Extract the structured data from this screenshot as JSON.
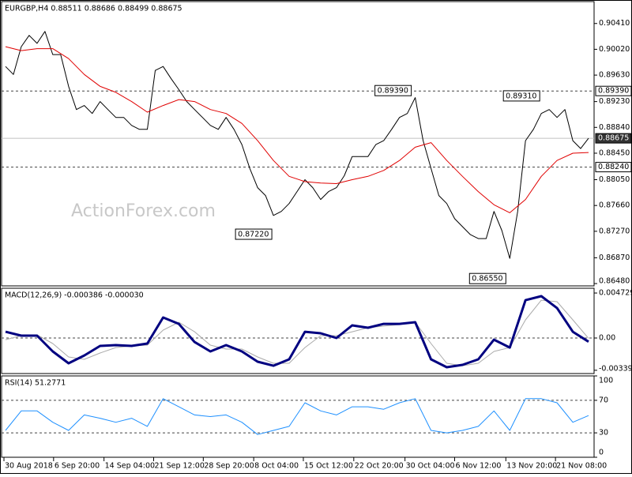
{
  "chart_data": [
    {
      "type": "line",
      "title": "EURGBP,H4  0.88511 0.88686 0.88499 0.88675",
      "watermark": "ActionForex.com",
      "xlim": [
        -0.5,
        74.7
      ],
      "xticks": [
        {
          "value": -0.2,
          "label": "30 Aug 2018"
        },
        {
          "value": 6.1,
          "label": "6 Sep 20:00"
        },
        {
          "value": 12.5,
          "label": "14 Sep 04:00"
        },
        {
          "value": 18.8,
          "label": "21 Sep 12:00"
        },
        {
          "value": 25.1,
          "label": "28 Sep 20:00"
        },
        {
          "value": 31.5,
          "label": "8 Oct 04:00"
        },
        {
          "value": 37.8,
          "label": "15 Oct 12:00"
        },
        {
          "value": 44.2,
          "label": "22 Oct 20:00"
        },
        {
          "value": 50.7,
          "label": "30 Oct 04:00"
        },
        {
          "value": 57,
          "label": "6 Nov 12:00"
        },
        {
          "value": 63.5,
          "label": "13 Nov 20:00"
        },
        {
          "value": 69.8,
          "label": "21 Nov 08:00"
        }
      ],
      "ylim": [
        0.86445,
        0.90741
      ],
      "yticks": [
        {
          "value": 0.9041,
          "label": "0.90410"
        },
        {
          "value": 0.9002,
          "label": "0.90020"
        },
        {
          "value": 0.8963,
          "label": "0.89630"
        },
        {
          "value": 0.8923,
          "label": "0.89230"
        },
        {
          "value": 0.8884,
          "label": "0.88840"
        },
        {
          "value": 0.8845,
          "label": "0.88450"
        },
        {
          "value": 0.8805,
          "label": "0.88050"
        },
        {
          "value": 0.8766,
          "label": "0.87660"
        },
        {
          "value": 0.8727,
          "label": "0.87270"
        },
        {
          "value": 0.8687,
          "label": "0.86870"
        },
        {
          "value": 0.8648,
          "label": "0.86480"
        }
      ],
      "levels": [
        {
          "value": 0.8939,
          "label": "0.89390",
          "style": "dashed"
        },
        {
          "value": 0.88675,
          "label": "0.88675",
          "style": "current"
        },
        {
          "value": 0.8824,
          "label": "0.88240",
          "style": "dashed"
        }
      ],
      "annotations": [
        {
          "text": "0.89390",
          "x": 51.5,
          "y": 0.8939
        },
        {
          "text": "0.89310",
          "x": 67.8,
          "y": 0.8931
        },
        {
          "text": "0.87220",
          "x": 33.8,
          "y": 0.8722
        },
        {
          "text": "0.86550",
          "x": 63.5,
          "y": 0.8655
        }
      ],
      "series": [
        {
          "color": "#000000",
          "width": 1,
          "values": [
            0.8976,
            0.8964,
            0.9006,
            0.9023,
            0.9011,
            0.9029,
            0.8994,
            0.8994,
            0.8946,
            0.8911,
            0.8917,
            0.8905,
            0.8923,
            0.8911,
            0.8899,
            0.8899,
            0.8887,
            0.8881,
            0.8881,
            0.897,
            0.8976,
            0.8958,
            0.8941,
            0.8923,
            0.8911,
            0.8899,
            0.8887,
            0.8881,
            0.8899,
            0.8881,
            0.8858,
            0.8822,
            0.8793,
            0.8781,
            0.8751,
            0.8757,
            0.8769,
            0.8787,
            0.8805,
            0.8793,
            0.8775,
            0.8787,
            0.8793,
            0.8811,
            0.884,
            0.884,
            0.884,
            0.8858,
            0.8864,
            0.8881,
            0.8899,
            0.8905,
            0.8929,
            0.8864,
            0.8822,
            0.8781,
            0.8769,
            0.8746,
            0.8734,
            0.8722,
            0.8716,
            0.8716,
            0.8757,
            0.8728,
            0.8686,
            0.8757,
            0.8864,
            0.8881,
            0.8905,
            0.8911,
            0.8899,
            0.8911,
            0.8864,
            0.8852,
            0.88675
          ]
        },
        {
          "color": "#e00000",
          "width": 1,
          "x": [
            0,
            2,
            4,
            6,
            8,
            10,
            12,
            14,
            16,
            18,
            20,
            22,
            24,
            26,
            28,
            30,
            32,
            34,
            36,
            38,
            40,
            42,
            44,
            46,
            48,
            50,
            52,
            54,
            56,
            58,
            60,
            62,
            64,
            66,
            68,
            70,
            72,
            74
          ],
          "values": [
            0.9006,
            0.9,
            0.9003,
            0.9003,
            0.8988,
            0.8964,
            0.8946,
            0.8937,
            0.8923,
            0.8907,
            0.8917,
            0.8926,
            0.8923,
            0.8911,
            0.8905,
            0.889,
            0.8864,
            0.8834,
            0.881,
            0.8802,
            0.88,
            0.8799,
            0.8805,
            0.881,
            0.8819,
            0.8834,
            0.8854,
            0.8861,
            0.8834,
            0.881,
            0.8787,
            0.8767,
            0.8755,
            0.8775,
            0.881,
            0.8834,
            0.8845,
            0.8846
          ]
        }
      ]
    },
    {
      "type": "line",
      "title": "MACD(12,26,9) -0.000386 -0.000030",
      "ylim": [
        -0.003735,
        0.00523
      ],
      "yticks": [
        0.004729,
        {
          "value": 0,
          "label": "0.00"
        },
        -0.003391
      ],
      "levels": [
        0
      ],
      "x": [
        0,
        2,
        4,
        6,
        8,
        10,
        12,
        14,
        16,
        18,
        20,
        22,
        24,
        26,
        28,
        30,
        32,
        34,
        36,
        38,
        40,
        42,
        44,
        46,
        48,
        50,
        52,
        54,
        56,
        58,
        60,
        62,
        64,
        66,
        68,
        70,
        72,
        74
      ],
      "series": [
        {
          "color": "#aaaaaa",
          "width": 1,
          "values": [
            -0.00017,
            0.00025,
            0.00033,
            -0.00058,
            -0.00199,
            -0.00224,
            -0.00158,
            -0.001,
            -0.00083,
            -0.00075,
            0.00083,
            0.00166,
            0.00066,
            -0.00075,
            -0.00116,
            -0.00116,
            -0.00199,
            -0.00266,
            -0.00266,
            -0.001,
            0.00025,
            0.00025,
            0.00066,
            0.00108,
            0.00125,
            0.00141,
            0.00166,
            -0.00058,
            -0.00266,
            -0.00291,
            -0.00266,
            -0.00141,
            -0.001,
            0.00191,
            0.00398,
            0.00382,
            0.00191,
            -3e-05
          ]
        },
        {
          "color": "#000080",
          "width": 3,
          "values": [
            0.00066,
            0.00025,
            0.00025,
            -0.00141,
            -0.00266,
            -0.00183,
            -0.00083,
            -0.00075,
            -0.00083,
            -0.00058,
            0.00216,
            0.00149,
            -0.00042,
            -0.00141,
            -0.00075,
            -0.00141,
            -0.00249,
            -0.00291,
            -0.00224,
            0.00066,
            0.0005,
            0,
            0.00133,
            0.00108,
            0.00149,
            0.00149,
            0.00166,
            -0.00224,
            -0.00307,
            -0.00282,
            -0.00224,
            -0.00017,
            -0.001,
            0.00398,
            0.0044,
            0.00315,
            0.00066,
            -0.000386
          ]
        }
      ]
    },
    {
      "type": "line",
      "title": "RSI(14) 51.2771",
      "ylim": [
        0,
        100
      ],
      "yticks": [
        100,
        70,
        30,
        0
      ],
      "levels": [
        70,
        30
      ],
      "x": [
        0,
        2,
        4,
        6,
        8,
        10,
        12,
        14,
        16,
        18,
        20,
        22,
        24,
        26,
        28,
        30,
        32,
        34,
        36,
        38,
        40,
        42,
        44,
        46,
        48,
        50,
        52,
        54,
        56,
        58,
        60,
        62,
        64,
        66,
        68,
        70,
        72,
        74
      ],
      "series": [
        {
          "color": "#1e90ff",
          "width": 1,
          "values": [
            33,
            57,
            57,
            43,
            33,
            52,
            48,
            43,
            48,
            38,
            72,
            62,
            52,
            50,
            52,
            43,
            28,
            33,
            38,
            67,
            57,
            52,
            62,
            62,
            59,
            67,
            72,
            33,
            30,
            33,
            38,
            57,
            33,
            72,
            72,
            67,
            43,
            51.2771
          ]
        }
      ]
    }
  ]
}
